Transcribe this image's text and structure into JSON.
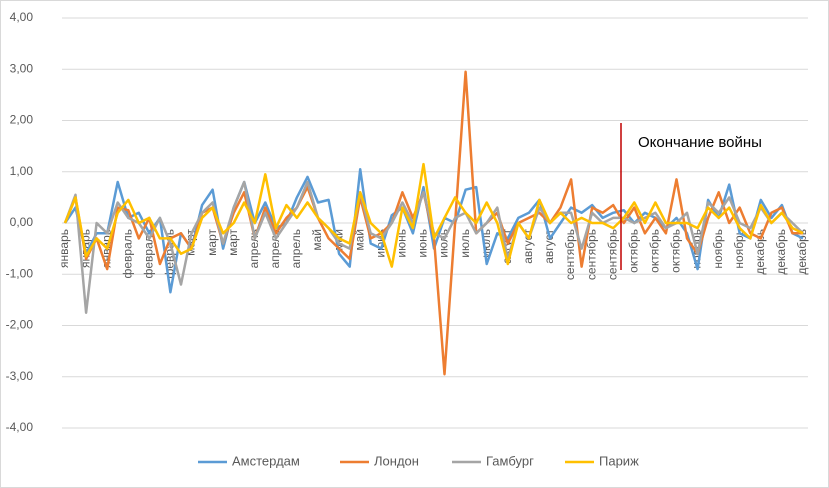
{
  "chart_data": {
    "type": "line",
    "categories": [
      "январь",
      null,
      "январь",
      null,
      "январь",
      null,
      "февраль",
      null,
      "февраль",
      null,
      "февраль",
      null,
      "март",
      null,
      "март",
      null,
      "март",
      null,
      "апрель",
      null,
      "апрель",
      null,
      "апрель",
      null,
      "май",
      null,
      "май",
      null,
      "май",
      null,
      "июнь",
      null,
      "июнь",
      null,
      "июнь",
      null,
      "июль",
      null,
      "июль",
      null,
      "июль",
      null,
      "август",
      null,
      "август",
      null,
      "август",
      null,
      "сентябрь",
      null,
      "сентябрь",
      null,
      "сентябрь",
      null,
      "октябрь",
      null,
      "октябрь",
      null,
      "октябрь",
      null,
      "ноябрь",
      null,
      "ноябрь",
      null,
      "ноябрь",
      null,
      "декабрь",
      null,
      "декабрь",
      null,
      "декабрь"
    ],
    "series": [
      {
        "name": "Амстердам",
        "color": "#5b9bd5",
        "values": [
          0,
          0.3,
          -0.6,
          -0.2,
          -0.2,
          0.8,
          0.1,
          0.2,
          -0.2,
          0.1,
          -1.35,
          -0.2,
          -0.5,
          0.35,
          0.65,
          -0.5,
          0.3,
          0.8,
          0.0,
          0.4,
          -0.1,
          0.0,
          0.5,
          0.9,
          0.4,
          0.45,
          -0.6,
          -0.85,
          1.05,
          -0.4,
          -0.5,
          0.15,
          0.3,
          -0.2,
          0.7,
          -0.5,
          0.1,
          0.0,
          0.65,
          0.7,
          -0.8,
          -0.2,
          -0.3,
          0.1,
          0.2,
          0.45,
          -0.3,
          0.0,
          0.3,
          0.2,
          0.35,
          0.1,
          0.2,
          0.25,
          0.0,
          0.2,
          0.1,
          -0.1,
          0.1,
          -0.2,
          -0.9,
          0.45,
          0.1,
          0.75,
          -0.2,
          -0.3,
          0.45,
          0.1,
          0.35,
          -0.2,
          -0.3
        ]
      },
      {
        "name": "Лондон",
        "color": "#ed7d31",
        "values": [
          0,
          0.5,
          -0.7,
          -0.3,
          -0.9,
          0.3,
          0.25,
          -0.3,
          0.1,
          -0.8,
          -0.3,
          -0.2,
          -0.5,
          0.2,
          0.3,
          -0.4,
          0.2,
          0.6,
          -0.3,
          0.3,
          -0.2,
          0.1,
          0.3,
          0.7,
          0.1,
          -0.3,
          -0.5,
          -0.7,
          0.5,
          -0.3,
          -0.2,
          0.0,
          0.6,
          0.1,
          0.6,
          -0.3,
          -2.95,
          0.0,
          2.95,
          -0.2,
          0.0,
          0.2,
          -0.4,
          0.0,
          0.1,
          0.2,
          0.0,
          0.3,
          0.85,
          -0.85,
          0.3,
          0.2,
          0.35,
          0.0,
          0.3,
          -0.2,
          0.1,
          -0.2,
          0.85,
          -0.3,
          -0.6,
          0.1,
          0.6,
          0.0,
          0.3,
          -0.2,
          -0.3,
          0.2,
          0.3,
          -0.2,
          -0.2
        ]
      },
      {
        "name": "Гамбург",
        "color": "#a5a5a5",
        "values": [
          0,
          0.55,
          -1.75,
          0.0,
          -0.2,
          0.4,
          0.1,
          0.0,
          -0.3,
          0.1,
          -0.4,
          -1.2,
          -0.2,
          0.2,
          0.4,
          -0.4,
          0.3,
          0.8,
          -0.3,
          0.2,
          -0.3,
          0.0,
          0.3,
          0.8,
          0.1,
          -0.1,
          -0.4,
          -0.5,
          0.6,
          -0.2,
          -0.3,
          0.0,
          0.4,
          0.0,
          0.6,
          -0.2,
          -0.3,
          0.1,
          0.2,
          -0.2,
          0.0,
          0.3,
          -0.7,
          0.0,
          -0.3,
          0.3,
          0.0,
          0.2,
          0.2,
          -0.5,
          0.2,
          0.0,
          0.1,
          0.1,
          0.0,
          0.1,
          0.2,
          -0.1,
          0.0,
          0.2,
          -0.6,
          0.4,
          0.2,
          0.5,
          0.0,
          -0.1,
          0.3,
          0.0,
          0.2,
          0.0,
          -0.2
        ]
      },
      {
        "name": "Париж",
        "color": "#ffc000",
        "values": [
          0,
          0.5,
          -0.65,
          -0.3,
          -0.5,
          0.2,
          0.45,
          0.0,
          0.1,
          -0.3,
          -0.3,
          -0.6,
          -0.5,
          0.1,
          0.3,
          -0.2,
          0.0,
          0.4,
          0.0,
          0.95,
          -0.1,
          0.35,
          0.1,
          0.4,
          0.1,
          -0.1,
          -0.3,
          -0.4,
          0.6,
          0.0,
          -0.2,
          -0.85,
          0.3,
          -0.1,
          1.15,
          -0.3,
          0.1,
          0.5,
          0.2,
          0.0,
          0.4,
          0.0,
          -0.8,
          0.0,
          -0.3,
          0.45,
          0.0,
          0.2,
          0.0,
          0.1,
          0.0,
          0.0,
          -0.1,
          0.1,
          0.4,
          0.0,
          0.4,
          0.0,
          0.0,
          0.0,
          -0.1,
          0.3,
          0.1,
          0.3,
          -0.1,
          -0.3,
          0.35,
          0.0,
          0.2,
          -0.1,
          -0.2
        ]
      }
    ],
    "annotation": "Окончание войны",
    "ylim": [
      -4,
      4
    ],
    "yticks": [
      {
        "value": -4,
        "label": "-4,00"
      },
      {
        "value": -3,
        "label": "-3,00"
      },
      {
        "value": -2,
        "label": "-2,00"
      },
      {
        "value": -1,
        "label": "-1,00"
      },
      {
        "value": 0,
        "label": "0,00"
      },
      {
        "value": 1,
        "label": "1,00"
      },
      {
        "value": 2,
        "label": "2,00"
      },
      {
        "value": 3,
        "label": "3,00"
      },
      {
        "value": 4,
        "label": "4,00"
      }
    ],
    "grid": true,
    "legend": "bottom"
  }
}
